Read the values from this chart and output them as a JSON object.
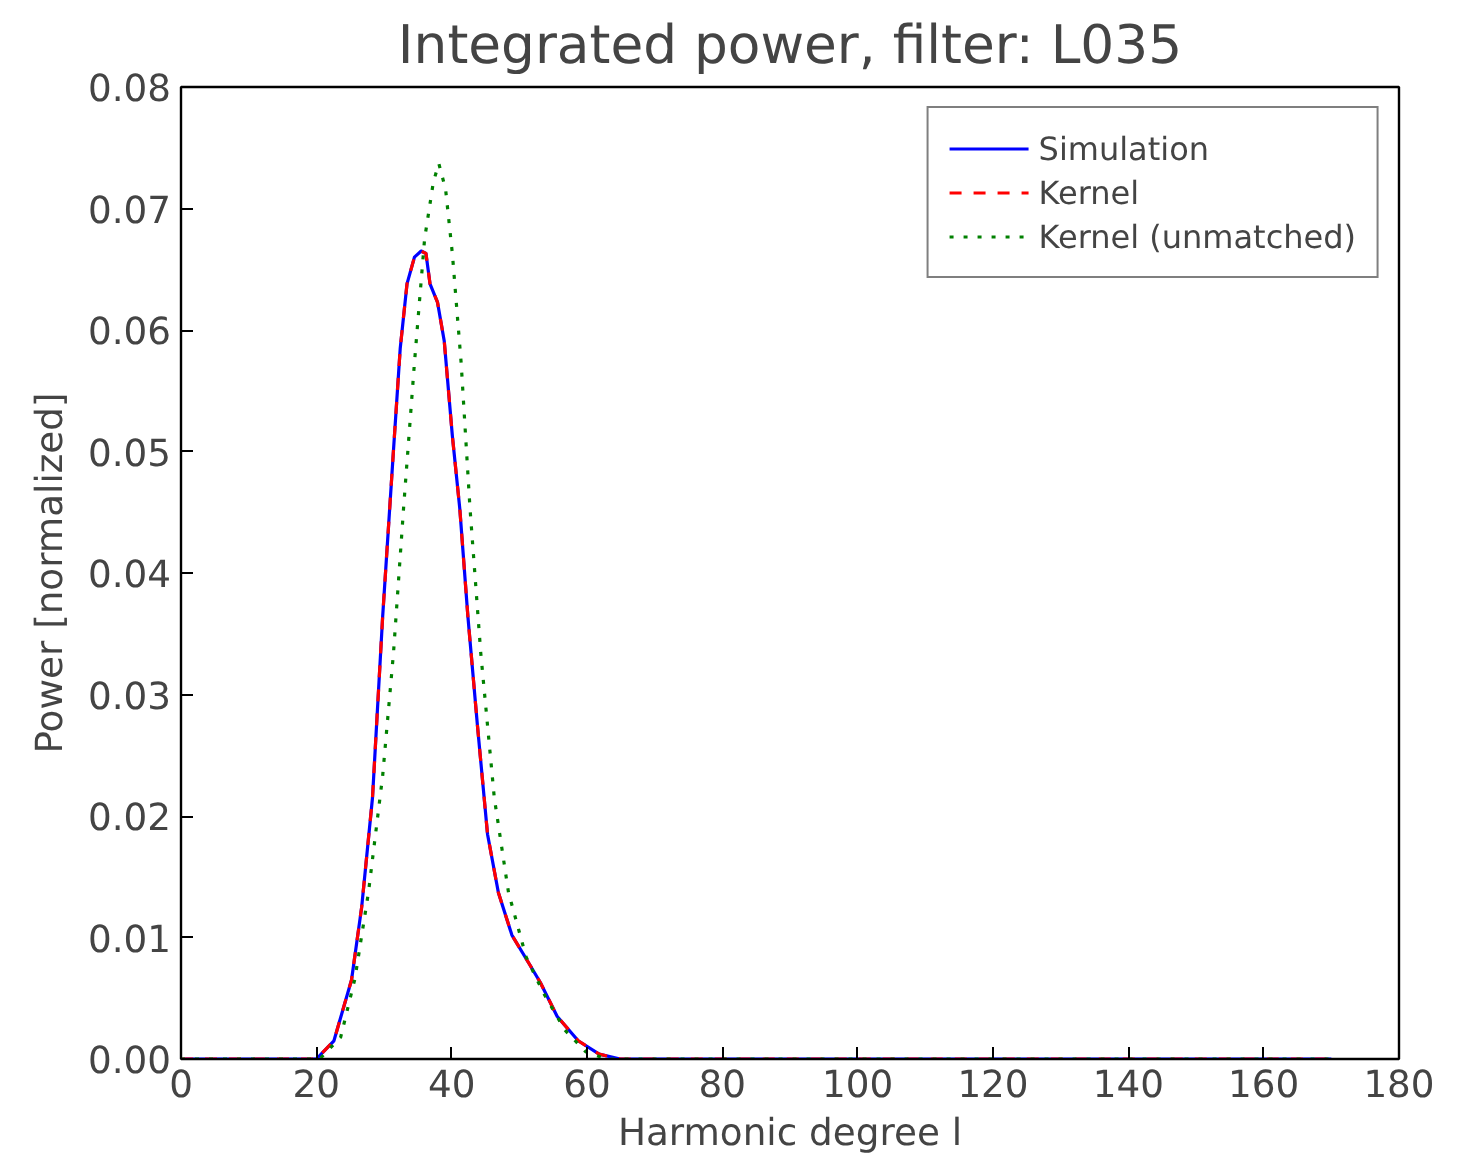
{
  "chart_data": {
    "type": "line",
    "title": "Integrated power, filter: L035",
    "xlabel": "Harmonic degree l",
    "ylabel": "Power [normalized]",
    "xlim": [
      0,
      180
    ],
    "xticks": [
      0,
      20,
      40,
      60,
      80,
      100,
      120,
      140,
      160,
      180
    ],
    "ylim": [
      0,
      0.08
    ],
    "yticks": [
      {
        "value": 0,
        "label": "0.00"
      },
      {
        "value": 0.01,
        "label": "0.01"
      },
      {
        "value": 0.02,
        "label": "0.02"
      },
      {
        "value": 0.03,
        "label": "0.03"
      },
      {
        "value": 0.04,
        "label": "0.04"
      },
      {
        "value": 0.05,
        "label": "0.05"
      },
      {
        "value": 0.06,
        "label": "0.06"
      },
      {
        "value": 0.07,
        "label": "0.07"
      },
      {
        "value": 0.08,
        "label": "0.08"
      }
    ],
    "grid": false,
    "legend": "top right",
    "series": [
      {
        "name": "Simulation",
        "color": "#0000ff",
        "line_style": "solid",
        "x": [
          0,
          20,
          22.6,
          25.2,
          26.7,
          28.3,
          29.8,
          31.4,
          32.4,
          33.4,
          34.5,
          35.5,
          36.2,
          36.8,
          37.9,
          38.9,
          40.1,
          41.2,
          42.4,
          43.8,
          45.3,
          46.9,
          48.9,
          51.5,
          53.1,
          55.6,
          58.7,
          61.8,
          64.9,
          170
        ],
        "values": [
          0,
          0,
          0.0015,
          0.0065,
          0.0125,
          0.0215,
          0.0364,
          0.0501,
          0.0585,
          0.0638,
          0.066,
          0.0665,
          0.0663,
          0.0638,
          0.0623,
          0.0591,
          0.0513,
          0.0453,
          0.0364,
          0.0275,
          0.0185,
          0.0137,
          0.0102,
          0.0078,
          0.0063,
          0.0035,
          0.0015,
          0.0004,
          0,
          0
        ]
      },
      {
        "name": "Kernel",
        "color": "#ff0000",
        "line_style": "dashed",
        "x": [
          0,
          20,
          22.6,
          25.2,
          26.7,
          28.3,
          29.8,
          31.4,
          32.4,
          33.4,
          34.5,
          35.5,
          36.2,
          36.8,
          37.9,
          38.9,
          40.1,
          41.2,
          42.4,
          43.8,
          45.3,
          46.9,
          48.9,
          51.5,
          53.1,
          55.6,
          58.7,
          61.8,
          64.9,
          170
        ],
        "values": [
          0,
          0,
          0.0015,
          0.0065,
          0.0125,
          0.0215,
          0.0364,
          0.0501,
          0.0585,
          0.0638,
          0.066,
          0.0665,
          0.0663,
          0.0638,
          0.0623,
          0.0591,
          0.0513,
          0.0453,
          0.0364,
          0.0275,
          0.0185,
          0.0137,
          0.0102,
          0.0078,
          0.0063,
          0.0035,
          0.0015,
          0.0004,
          0,
          0
        ]
      },
      {
        "name": "Kernel (unmatched)",
        "color": "#008000",
        "line_style": "dotted",
        "x": [
          0,
          20.5,
          23.6,
          25.7,
          27.7,
          29.8,
          31.4,
          32.9,
          34.5,
          36.0,
          37.3,
          38.1,
          39.1,
          40.1,
          41.4,
          42.7,
          44.3,
          46.3,
          48.4,
          51.0,
          53.6,
          56.7,
          59.8,
          62.9,
          170
        ],
        "values": [
          0,
          0,
          0.0018,
          0.0066,
          0.0137,
          0.0233,
          0.0334,
          0.0454,
          0.0573,
          0.0675,
          0.0722,
          0.0737,
          0.0716,
          0.0663,
          0.0573,
          0.0454,
          0.0334,
          0.0215,
          0.0137,
          0.0084,
          0.0054,
          0.0024,
          0.0006,
          0,
          0
        ]
      }
    ]
  }
}
